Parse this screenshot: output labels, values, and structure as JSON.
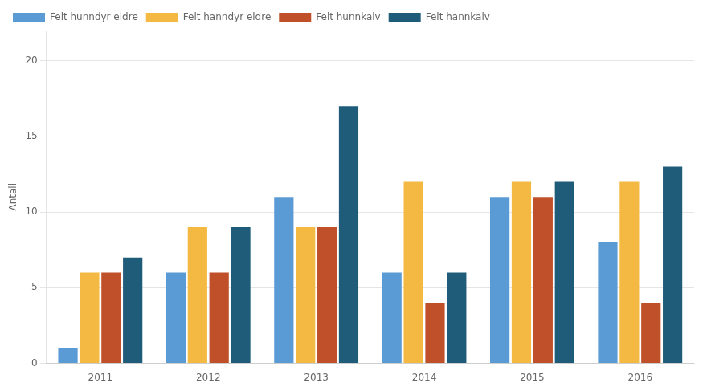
{
  "chart_data": {
    "type": "bar",
    "categories": [
      "2011",
      "2012",
      "2013",
      "2014",
      "2015",
      "2016"
    ],
    "series": [
      {
        "name": "Felt hunndyr eldre",
        "color": "#5B9BD5",
        "values": [
          1,
          6,
          11,
          6,
          11,
          8
        ]
      },
      {
        "name": "Felt hanndyr eldre",
        "color": "#F4B942",
        "values": [
          6,
          9,
          9,
          12,
          12,
          12
        ]
      },
      {
        "name": "Felt hunnkalv",
        "color": "#C0502A",
        "values": [
          6,
          6,
          9,
          4,
          11,
          4
        ]
      },
      {
        "name": "Felt hannkalv",
        "color": "#1F5C7A",
        "values": [
          7,
          9,
          17,
          6,
          12,
          13
        ]
      }
    ],
    "ylabel": "Antall",
    "ylim": [
      0,
      22
    ],
    "yticks": [
      0,
      5,
      10,
      15,
      20
    ],
    "grid": true,
    "legend": "upper left"
  }
}
